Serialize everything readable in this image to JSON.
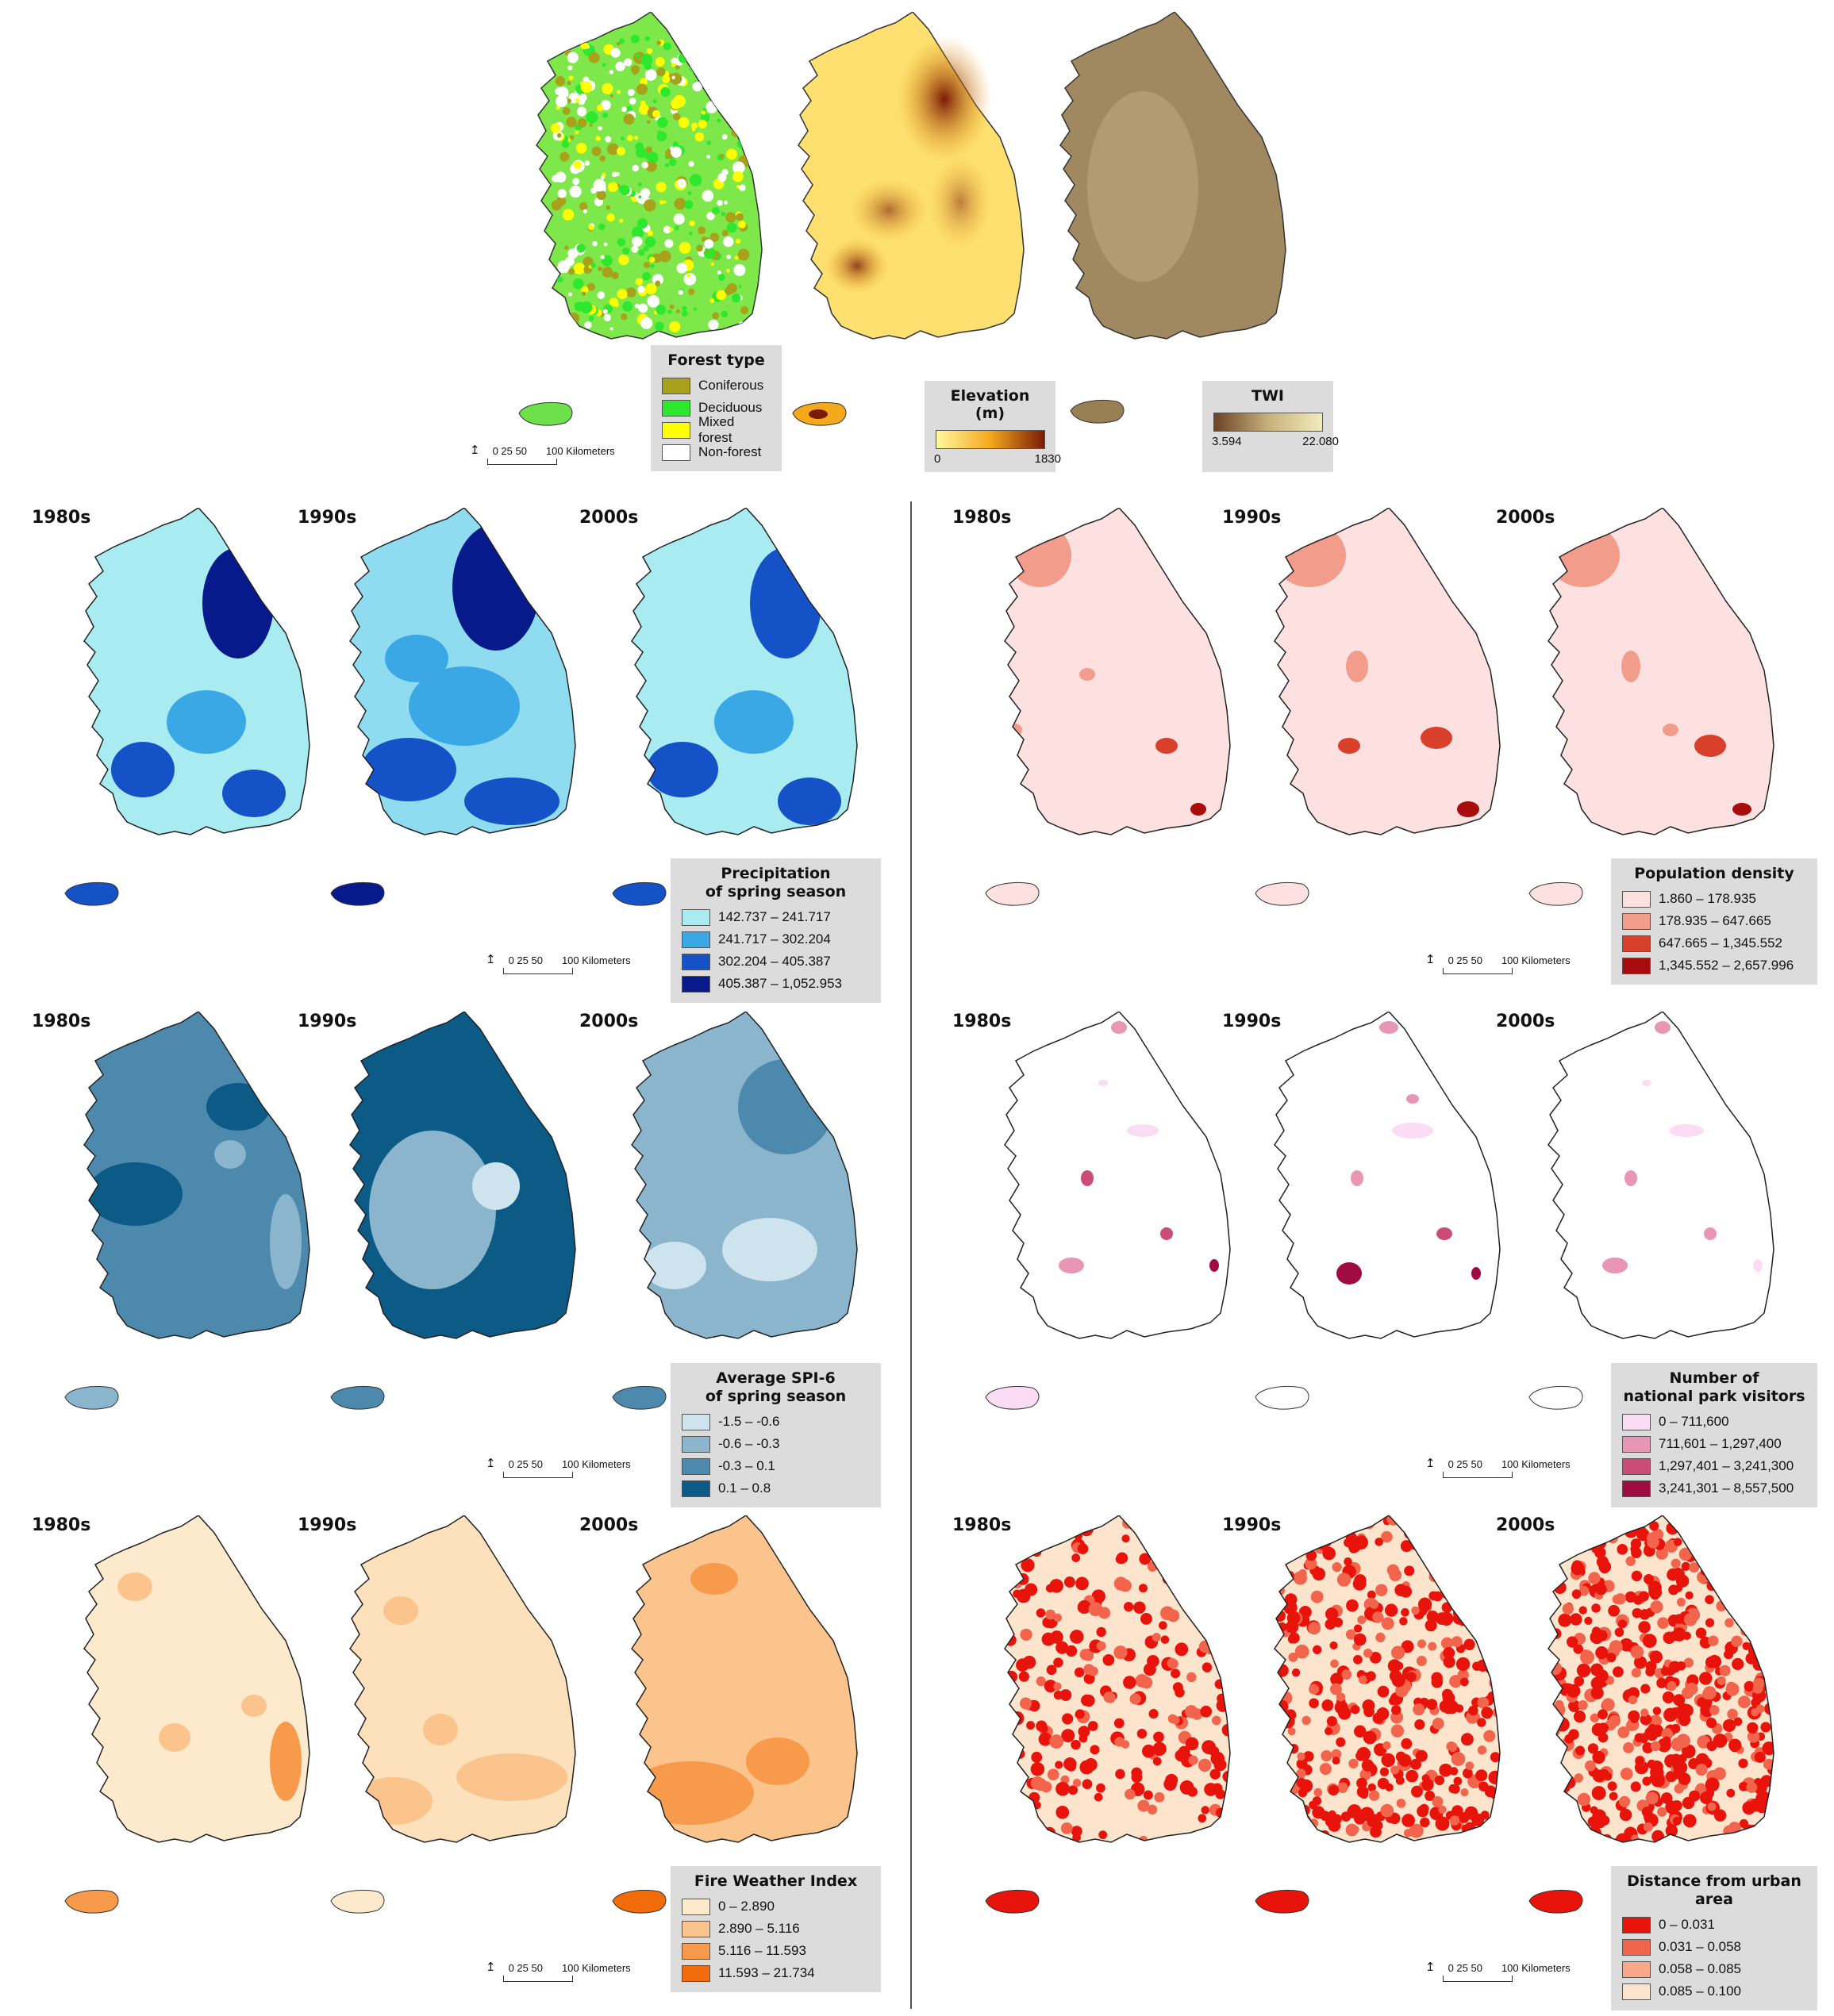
{
  "top": {
    "forest_legend": {
      "title": "Forest type",
      "items": [
        {
          "label": "Coniferous",
          "color": "#a8a21a"
        },
        {
          "label": "Deciduous",
          "color": "#2ee82e"
        },
        {
          "label": "Mixed forest",
          "color": "#ffff00"
        },
        {
          "label": "Non-forest",
          "color": "#ffffff"
        }
      ]
    },
    "elevation_legend": {
      "title": "Elevation (m)",
      "min": "0",
      "max": "1830",
      "colors": [
        "#fff8a0",
        "#f4a81c",
        "#7a1a08"
      ]
    },
    "twi_legend": {
      "title": "TWI",
      "min": "3.594",
      "max": "22.080",
      "colors": [
        "#6b4226",
        "#c8b07c",
        "#f2ecbc"
      ]
    },
    "scale": {
      "north": "N",
      "ticks": "0  25 50",
      "unit": "100 Kilometers"
    }
  },
  "decades": [
    "1980s",
    "1990s",
    "2000s"
  ],
  "panels": [
    {
      "id": "precip",
      "legend": {
        "title_line1": "Precipitation",
        "title_line2": "of spring season",
        "items": [
          {
            "label": "142.737 – 241.717",
            "color": "#a8ecf2"
          },
          {
            "label": "241.717 – 302.204",
            "color": "#3ba8e6"
          },
          {
            "label": "302.204 – 405.387",
            "color": "#1552c8"
          },
          {
            "label": "405.387 – 1,052.953",
            "color": "#061a8c"
          }
        ]
      },
      "maps": [
        {
          "base": "#a8ecf2"
        },
        {
          "base": "#8fdcf0"
        },
        {
          "base": "#a8ecf2"
        }
      ]
    },
    {
      "id": "spi",
      "legend": {
        "title_line1": "Average SPI-6",
        "title_line2": "of spring season",
        "items": [
          {
            "label": "-1.5 – -0.6",
            "color": "#cde4ee"
          },
          {
            "label": "-0.6 – -0.3",
            "color": "#8ab5cc"
          },
          {
            "label": "-0.3 – 0.1",
            "color": "#4d89ad"
          },
          {
            "label": "0.1 – 0.8",
            "color": "#0b5b86"
          }
        ]
      },
      "maps": [
        {
          "base": "#4d89ad"
        },
        {
          "base": "#0b5b86"
        },
        {
          "base": "#8ab5cc"
        }
      ]
    },
    {
      "id": "fwi",
      "legend": {
        "title_line1": "Fire Weather Index",
        "title_line2": "",
        "items": [
          {
            "label": "0 – 2.890",
            "color": "#fde9cc"
          },
          {
            "label": "2.890 – 5.116",
            "color": "#fbc48c"
          },
          {
            "label": "5.116 – 11.593",
            "color": "#f89a4c"
          },
          {
            "label": "11.593 – 21.734",
            "color": "#f26c0c"
          }
        ]
      },
      "maps": [
        {
          "base": "#fde9cc"
        },
        {
          "base": "#fde0bc"
        },
        {
          "base": "#fbc48c"
        }
      ]
    },
    {
      "id": "pop",
      "legend": {
        "title_line1": "Population density",
        "title_line2": "",
        "items": [
          {
            "label": "1.860 – 178.935",
            "color": "#fde0e0"
          },
          {
            "label": "178.935 – 647.665",
            "color": "#f29c8c"
          },
          {
            "label": "647.665 – 1,345.552",
            "color": "#d8402c"
          },
          {
            "label": "1,345.552 – 2,657.996",
            "color": "#a80c0c"
          }
        ]
      },
      "maps": [
        {
          "base": "#fde0e0"
        },
        {
          "base": "#fde0e0"
        },
        {
          "base": "#fde0e0"
        }
      ]
    },
    {
      "id": "park",
      "legend": {
        "title_line1": "Number of",
        "title_line2": "national park visitors",
        "items": [
          {
            "label": "0 – 711,600",
            "color": "#fcdcf4"
          },
          {
            "label": "711,601 – 1,297,400",
            "color": "#e896b4"
          },
          {
            "label": "1,297,401 – 3,241,300",
            "color": "#cc4c78"
          },
          {
            "label": "3,241,301 – 8,557,500",
            "color": "#a00c40"
          }
        ]
      },
      "maps": [
        {
          "base": "#ffffff"
        },
        {
          "base": "#ffffff"
        },
        {
          "base": "#ffffff"
        }
      ]
    },
    {
      "id": "dist",
      "legend": {
        "title_line1": "Distance from urban area",
        "title_line2": "",
        "items": [
          {
            "label": "0 – 0.031",
            "color": "#e8140c"
          },
          {
            "label": "0.031 – 0.058",
            "color": "#f2644c"
          },
          {
            "label": "0.058 – 0.085",
            "color": "#f8a888"
          },
          {
            "label": "0.085 – 0.100",
            "color": "#fde4cc"
          }
        ]
      },
      "maps": [
        {
          "base": "#fde4cc"
        },
        {
          "base": "#fde4cc"
        },
        {
          "base": "#fde4cc"
        }
      ]
    }
  ]
}
